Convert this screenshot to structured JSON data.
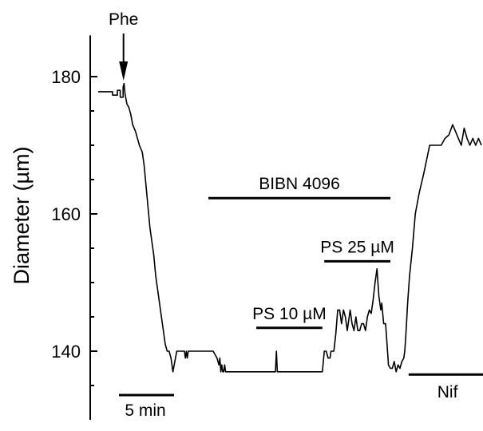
{
  "chart_data": {
    "type": "line",
    "title": "",
    "xlabel": "",
    "ylabel": "Diameter (µm)",
    "ylim": [
      130,
      186
    ],
    "xlim": [
      0,
      40.2
    ],
    "y_ticks": [
      140,
      160,
      180
    ],
    "scale_bar": {
      "label": "5 min",
      "minutes": 5,
      "y": 133.6
    },
    "annotations": {
      "phe": {
        "label": "Phe",
        "time": 2.6
      },
      "bars": [
        {
          "label": "BIBN 4096",
          "start": 11.5,
          "end": 30.5,
          "y": 162.3
        },
        {
          "label": "PS 10 µM",
          "start": 16.5,
          "end": 23.4,
          "y": 143.4
        },
        {
          "label": "PS 25 µM",
          "start": 23.6,
          "end": 30.5,
          "y": 153.1
        },
        {
          "label": "Nif",
          "start": 32.4,
          "end": 40.2,
          "y": 136.6
        }
      ]
    },
    "series": [
      {
        "x": [
          0,
          1.5,
          1.5,
          2.0,
          2.0,
          2.3,
          2.3,
          2.6,
          2.6,
          2.7,
          2.8,
          3.0,
          3.2,
          3.4,
          3.6,
          3.9,
          4.3,
          4.6,
          4.8,
          5.0,
          5.2,
          5.4,
          5.6,
          5.8,
          6.0,
          6.2,
          6.4,
          6.6,
          6.8,
          7.0,
          7.2,
          7.4,
          7.6,
          7.8,
          8.2,
          8.6,
          9.0,
          9.1,
          9.2,
          9.3,
          9.4,
          9.8,
          10.2,
          10.5,
          11.0,
          11.5,
          12.0,
          12.4,
          12.6,
          12.7,
          12.8,
          12.9,
          13.0,
          13.1,
          13.2,
          13.3,
          13.4,
          13.5,
          14.0,
          15.0,
          16.0,
          17.0,
          18.0,
          18.5,
          18.6,
          18.7,
          18.8,
          19.0,
          20.0,
          21.0,
          22.0,
          23.0,
          23.4,
          23.5,
          23.6,
          23.8,
          24.0,
          24.2,
          24.3,
          24.4,
          24.6,
          24.8,
          25.0,
          25.2,
          25.4,
          25.6,
          25.8,
          26.0,
          26.3,
          26.5,
          26.7,
          26.9,
          27.1,
          27.3,
          27.5,
          27.7,
          27.9,
          28.1,
          28.3,
          28.5,
          28.7,
          28.9,
          29.1,
          29.3,
          29.5,
          29.6,
          29.8,
          30.0,
          30.2,
          30.3,
          30.5,
          30.7,
          30.9,
          31.1,
          31.3,
          31.5,
          31.7,
          31.9,
          32.0,
          32.1,
          32.3,
          32.5,
          32.8,
          33.1,
          33.5,
          34.0,
          34.3,
          34.6,
          35.0,
          35.4,
          35.8,
          36.2,
          36.6,
          37.0,
          37.3,
          37.6,
          37.9,
          38.2,
          38.5,
          38.8,
          39.1,
          39.4,
          39.7,
          40.0
        ],
        "y": [
          177.8,
          177.8,
          177.3,
          177.3,
          178.0,
          178.0,
          177.0,
          177.0,
          178.5,
          179.0,
          177.5,
          176.0,
          175.5,
          174.5,
          173.0,
          172.0,
          170.0,
          169.0,
          167.0,
          164.0,
          161.0,
          158.0,
          156.0,
          154.0,
          151.0,
          149.0,
          147.0,
          145.0,
          143.0,
          141.0,
          140.0,
          140.0,
          139.0,
          137.0,
          140.0,
          140.0,
          140.0,
          139.0,
          140.0,
          139.0,
          140.0,
          140.0,
          140.0,
          140.0,
          140.0,
          140.0,
          140.0,
          139.0,
          138.0,
          139.0,
          137.0,
          138.0,
          137.0,
          137.0,
          138.0,
          137.0,
          137.0,
          137.0,
          137.0,
          137.0,
          137.0,
          137.0,
          137.0,
          137.0,
          140.0,
          137.0,
          137.0,
          137.0,
          137.0,
          137.0,
          137.0,
          137.0,
          137.0,
          138.5,
          140.0,
          140.0,
          139.0,
          139.0,
          140.0,
          140.0,
          140.0,
          142.5,
          146.0,
          146.0,
          144.0,
          146.0,
          145.0,
          143.0,
          146.0,
          144.0,
          143.0,
          145.0,
          143.0,
          143.0,
          144.0,
          144.0,
          143.0,
          145.0,
          146.0,
          145.5,
          147.5,
          150.0,
          152.0,
          148.0,
          146.0,
          147.0,
          144.0,
          144.0,
          140.0,
          138.0,
          137.5,
          137.5,
          138.5,
          137.0,
          138.0,
          137.5,
          138.5,
          139.0,
          140.0,
          142.0,
          147.0,
          151.0,
          155.0,
          160.0,
          163.0,
          166.0,
          168.0,
          170.0,
          170.0,
          170.0,
          170.0,
          171.0,
          171.5,
          173.0,
          172.0,
          171.0,
          170.0,
          172.5,
          171.0,
          170.0,
          171.0,
          170.0,
          171.0,
          170.0
        ]
      }
    ]
  }
}
